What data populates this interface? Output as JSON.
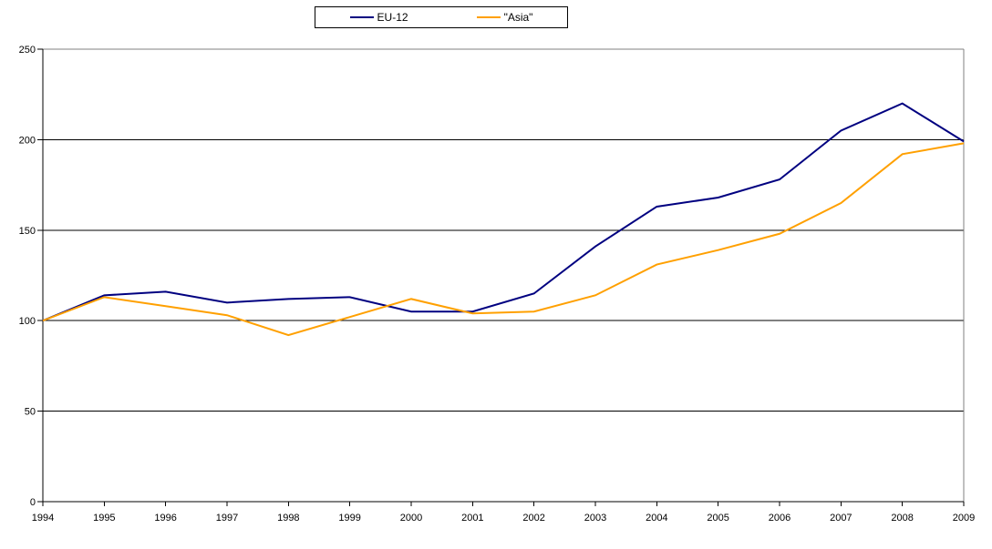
{
  "chart_data": {
    "type": "line",
    "title": "",
    "xlabel": "",
    "ylabel": "",
    "x": [
      1994,
      1995,
      1996,
      1997,
      1998,
      1999,
      2000,
      2001,
      2002,
      2003,
      2004,
      2005,
      2006,
      2007,
      2008,
      2009
    ],
    "series": [
      {
        "name": "EU-12",
        "color": "#000080",
        "values": [
          100,
          114,
          116,
          110,
          112,
          113,
          105,
          105,
          115,
          141,
          163,
          168,
          178,
          205,
          220,
          199
        ]
      },
      {
        "name": "\"Asia\"",
        "color": "#FFA000",
        "values": [
          100,
          113,
          108,
          103,
          92,
          102,
          112,
          104,
          105,
          114,
          131,
          139,
          148,
          165,
          192,
          198
        ]
      }
    ],
    "ylim": [
      0,
      250
    ],
    "yticks": [
      0,
      50,
      100,
      150,
      200,
      250
    ],
    "grid": "horizontal",
    "legend_position": "top-center",
    "colors": {
      "axis": "#000000",
      "gridline": "#000000",
      "plot_border": "#808080",
      "background": "#FFFFFF",
      "text": "#000000"
    }
  }
}
